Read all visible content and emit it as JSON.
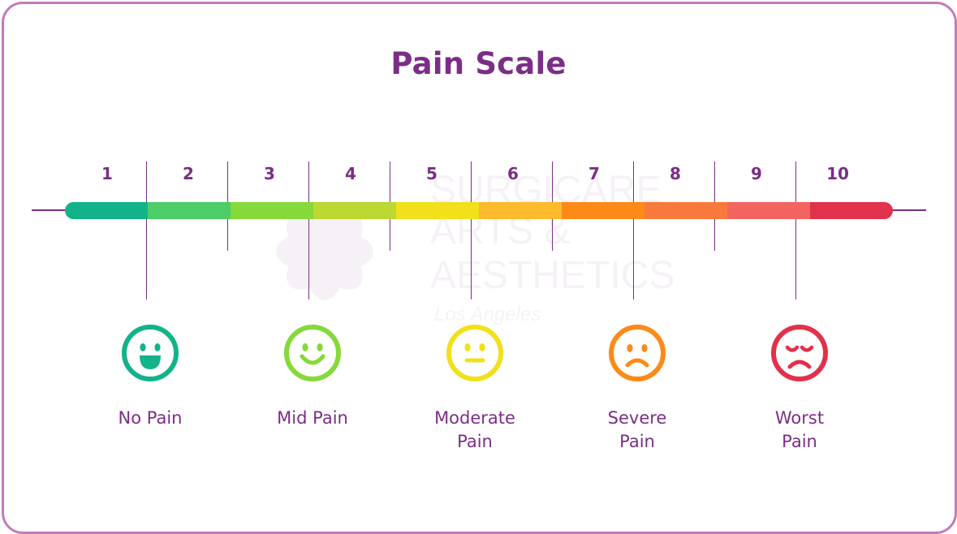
{
  "title": "Pain Scale",
  "numbers": [
    "1",
    "2",
    "3",
    "4",
    "5",
    "6",
    "7",
    "8",
    "9",
    "10"
  ],
  "segment_colors": [
    "#13b38a",
    "#4ccd68",
    "#86d93a",
    "#bcd832",
    "#f1e01b",
    "#fdba2d",
    "#fd8a17",
    "#f77a3c",
    "#f36460",
    "#e2314a"
  ],
  "levels": [
    {
      "label_line1": "No Pain",
      "label_line2": "",
      "icon": "very-happy-face-icon",
      "color": "#13b38a"
    },
    {
      "label_line1": "Mid Pain",
      "label_line2": "",
      "icon": "smiling-face-icon",
      "color": "#86d93a"
    },
    {
      "label_line1": "Moderate",
      "label_line2": "Pain",
      "icon": "neutral-face-icon",
      "color": "#f1e01b"
    },
    {
      "label_line1": "Severe",
      "label_line2": "Pain",
      "icon": "sad-face-icon",
      "color": "#fd8a17"
    },
    {
      "label_line1": "Worst",
      "label_line2": "Pain",
      "icon": "crying-face-icon",
      "color": "#e2314a"
    }
  ],
  "watermark": {
    "line1": "SURGICARE",
    "line2": "ARTS &",
    "line3": "AESTHETICS",
    "line4": "Los Angeles"
  }
}
